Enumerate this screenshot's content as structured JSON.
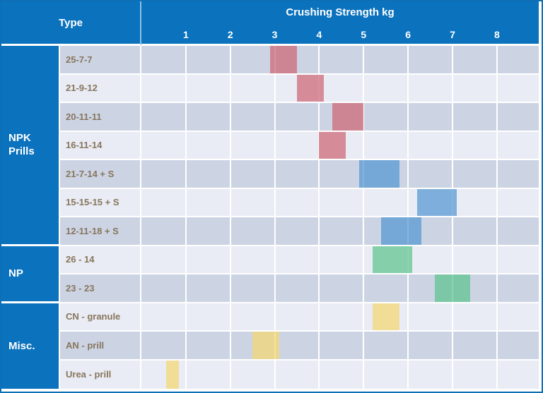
{
  "header": {
    "type_label": "Type",
    "title": "Crushing Strength kg"
  },
  "colors": {
    "header_blue": "#0b72bd",
    "row_dark": "#ccd4e4",
    "row_light": "#e9ecf4",
    "label_text": "#87755c",
    "bar_red": "rgba(205,100,112,0.7)",
    "bar_blue": "rgba(80,150,210,0.7)",
    "bar_green": "rgba(90,195,140,0.7)",
    "bar_yellow": "rgba(245,215,110,0.7)"
  },
  "chart_data": {
    "type": "bar",
    "orientation": "horizontal-range",
    "title": "Crushing Strength kg",
    "xlabel": "Crushing Strength kg",
    "x_ticks": [
      1,
      2,
      3,
      4,
      5,
      6,
      7,
      8
    ],
    "x_range": [
      0,
      8.94
    ],
    "grid": true,
    "groups": [
      {
        "label": "NPK Prills",
        "rows": 7
      },
      {
        "label": "NP",
        "rows": 2
      },
      {
        "label": "Misc.",
        "rows": 3
      }
    ],
    "rows": [
      {
        "label": "25-7-7",
        "group": "NPK Prills",
        "range_kg": [
          2.9,
          3.5
        ],
        "color": "red"
      },
      {
        "label": "21-9-12",
        "group": "NPK Prills",
        "range_kg": [
          3.5,
          4.1
        ],
        "color": "red"
      },
      {
        "label": "20-11-11",
        "group": "NPK Prills",
        "range_kg": [
          4.3,
          5.0
        ],
        "color": "red"
      },
      {
        "label": "16-11-14",
        "group": "NPK Prills",
        "range_kg": [
          4.0,
          4.6
        ],
        "color": "red"
      },
      {
        "label": "21-7-14 + S",
        "group": "NPK Prills",
        "range_kg": [
          4.9,
          5.8
        ],
        "color": "blue"
      },
      {
        "label": "15-15-15 + S",
        "group": "NPK Prills",
        "range_kg": [
          6.2,
          7.1
        ],
        "color": "blue"
      },
      {
        "label": "12-11-18 + S",
        "group": "NPK Prills",
        "range_kg": [
          5.4,
          6.3
        ],
        "color": "blue"
      },
      {
        "label": "26 - 14",
        "group": "NP",
        "range_kg": [
          5.2,
          6.1
        ],
        "color": "green"
      },
      {
        "label": "23 - 23",
        "group": "NP",
        "range_kg": [
          6.6,
          7.4
        ],
        "color": "green"
      },
      {
        "label": "CN - granule",
        "group": "Misc.",
        "range_kg": [
          5.2,
          5.8
        ],
        "color": "yellow"
      },
      {
        "label": "AN - prill",
        "group": "Misc.",
        "range_kg": [
          2.5,
          3.1
        ],
        "color": "yellow"
      },
      {
        "label": "Urea - prill",
        "group": "Misc.",
        "range_kg": [
          0.55,
          0.85
        ],
        "color": "yellow"
      }
    ]
  }
}
